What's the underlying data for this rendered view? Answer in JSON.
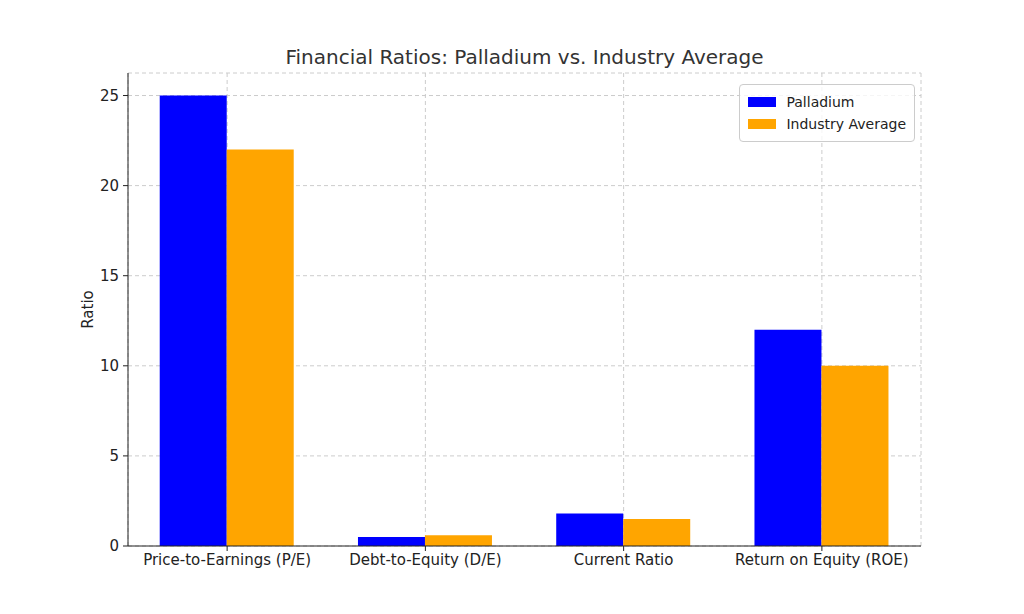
{
  "chart_data": {
    "type": "bar",
    "title": "Financial Ratios: Palladium vs. Industry Average",
    "ylabel": "Ratio",
    "categories": [
      "Price-to-Earnings (P/E)",
      "Debt-to-Equity (D/E)",
      "Current Ratio",
      "Return on Equity (ROE)"
    ],
    "series": [
      {
        "name": "Palladium",
        "color": "#0000ff",
        "values": [
          25,
          0.5,
          1.8,
          12
        ]
      },
      {
        "name": "Industry Average",
        "color": "#ffa500",
        "values": [
          22,
          0.6,
          1.5,
          10
        ]
      }
    ],
    "ylim": [
      0,
      26.25
    ],
    "yticks": [
      0,
      5,
      10,
      15,
      20,
      25
    ],
    "grid": true,
    "legend": "upper right"
  }
}
